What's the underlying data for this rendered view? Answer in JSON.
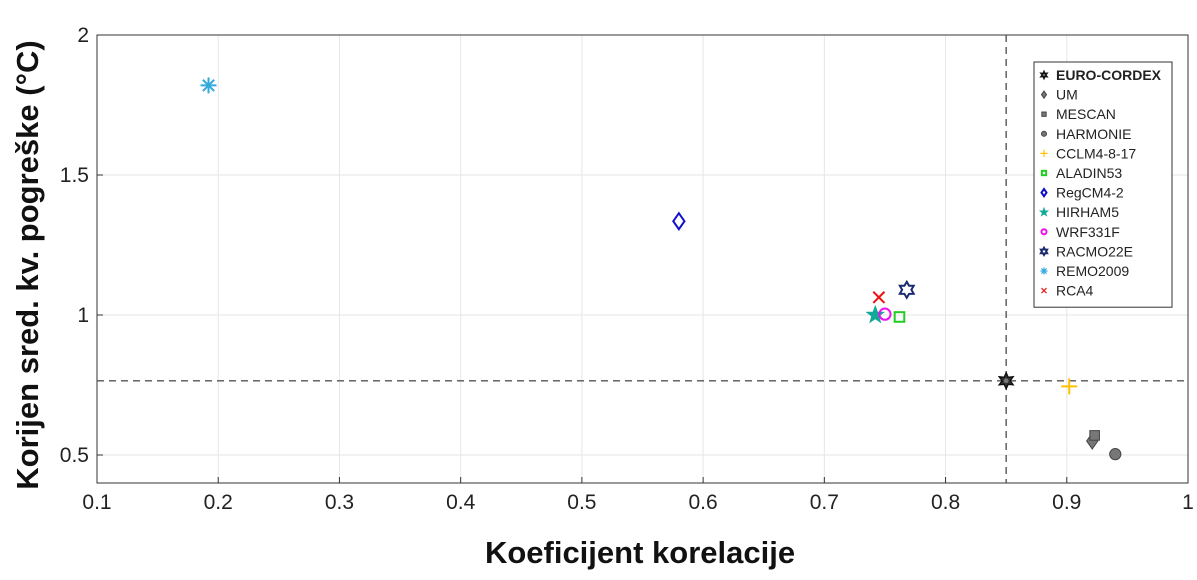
{
  "chart_data": {
    "type": "scatter",
    "title": "",
    "xlabel": "Koeficijent korelacije",
    "ylabel": "Korijen sred. kv. pogreške (°C)",
    "xlim": [
      0.1,
      1.0
    ],
    "ylim": [
      0.4,
      2.0
    ],
    "xticks": [
      "0.1",
      "0.2",
      "0.3",
      "0.4",
      "0.5",
      "0.6",
      "0.7",
      "0.8",
      "0.9",
      "1"
    ],
    "yticks": [
      "0.5",
      "1",
      "1.5",
      "2"
    ],
    "xtick_values": [
      0.1,
      0.2,
      0.3,
      0.4,
      0.5,
      0.6,
      0.7,
      0.8,
      0.9,
      1.0
    ],
    "ytick_values": [
      0.5,
      1.0,
      1.5,
      2.0
    ],
    "grid": true,
    "legend_position": "top-right",
    "reference_lines": {
      "x": 0.85,
      "y": 0.765
    },
    "series": [
      {
        "name": "EURO-CORDEX",
        "x": 0.85,
        "y": 0.765,
        "marker": "star",
        "color": "#333333",
        "bold": true
      },
      {
        "name": "UM",
        "x": 0.921,
        "y": 0.55,
        "marker": "diamond",
        "color": "#777777"
      },
      {
        "name": "MESCAN",
        "x": 0.923,
        "y": 0.57,
        "marker": "square",
        "color": "#777777"
      },
      {
        "name": "HARMONIE",
        "x": 0.94,
        "y": 0.503,
        "marker": "circle",
        "color": "#777777"
      },
      {
        "name": "CCLM4-8-17",
        "x": 0.902,
        "y": 0.745,
        "marker": "plus",
        "color": "#FFC000"
      },
      {
        "name": "ALADIN53",
        "x": 0.762,
        "y": 0.993,
        "marker": "square-open",
        "color": "#22CC22"
      },
      {
        "name": "RegCM4-2",
        "x": 0.58,
        "y": 1.335,
        "marker": "diamond-open",
        "color": "#1111CC"
      },
      {
        "name": "HIRHAM5",
        "x": 0.742,
        "y": 1.0,
        "marker": "pentagram",
        "color": "#11AA99"
      },
      {
        "name": "WRF331F",
        "x": 0.75,
        "y": 1.003,
        "marker": "circle-open",
        "color": "#EE11EE"
      },
      {
        "name": "RACMO22E",
        "x": 0.768,
        "y": 1.09,
        "marker": "hexagram",
        "color": "#1A2A6C"
      },
      {
        "name": "REMO2009",
        "x": 0.192,
        "y": 1.82,
        "marker": "asterisk",
        "color": "#33AADD"
      },
      {
        "name": "RCA4",
        "x": 0.745,
        "y": 1.063,
        "marker": "x",
        "color": "#EE1111"
      }
    ]
  }
}
